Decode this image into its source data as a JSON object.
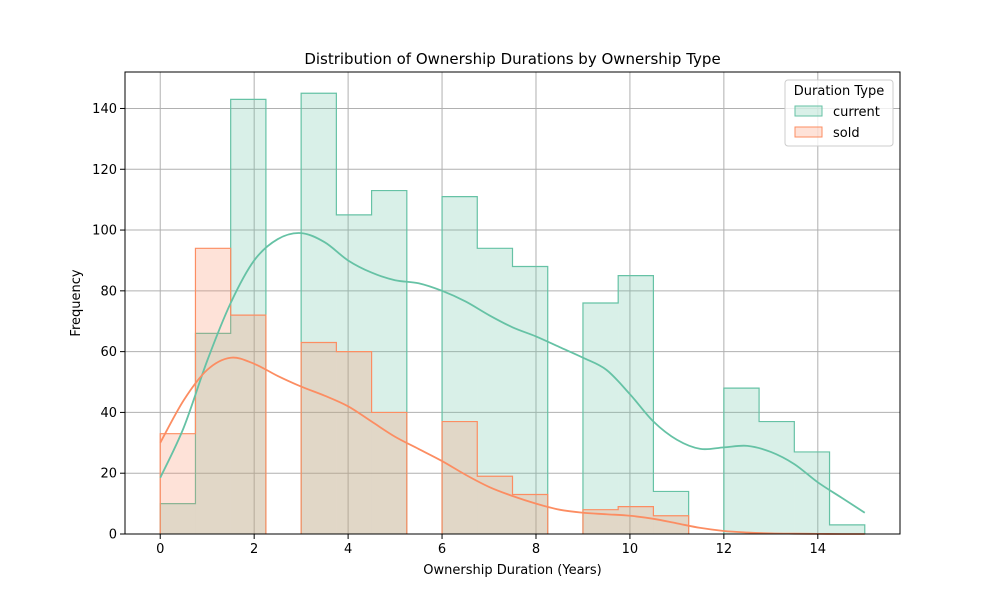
{
  "chart_data": {
    "type": "histogram",
    "title": "Distribution of Ownership Durations by Ownership Type",
    "xlabel": "Ownership Duration (Years)",
    "ylabel": "Frequency",
    "xlim": [
      -0.75,
      15.75
    ],
    "ylim": [
      0,
      152
    ],
    "xticks": [
      0,
      2,
      4,
      6,
      8,
      10,
      12,
      14
    ],
    "yticks": [
      0,
      20,
      40,
      60,
      80,
      100,
      120,
      140
    ],
    "grid": true,
    "bin_edges": [
      0,
      0.75,
      1.5,
      2.25,
      3,
      3.75,
      4.5,
      5.25,
      6,
      6.75,
      7.5,
      8.25,
      9,
      9.75,
      10.5,
      11.25,
      12,
      12.75,
      13.5,
      14.25,
      15
    ],
    "legend": {
      "title": "Duration Type",
      "position": "top-right"
    },
    "series": [
      {
        "name": "current",
        "line_color": "#66c2a5",
        "fill_color": "#66c2a5",
        "counts": [
          10,
          66,
          143,
          0,
          145,
          105,
          113,
          0,
          111,
          94,
          88,
          0,
          76,
          85,
          14,
          0,
          48,
          37,
          27,
          3
        ],
        "kde": {
          "x": [
            0,
            0.5,
            1,
            1.5,
            2,
            2.5,
            3,
            3.5,
            4,
            4.5,
            5,
            5.5,
            6,
            6.5,
            7,
            7.5,
            8,
            8.5,
            9,
            9.5,
            10,
            10.5,
            11,
            11.5,
            12,
            12.5,
            13,
            13.5,
            14,
            14.5,
            15
          ],
          "y": [
            18.5,
            35,
            57,
            76,
            90,
            97,
            99,
            96,
            90,
            86,
            83.5,
            82.5,
            80,
            76.5,
            72,
            68,
            65,
            61.5,
            58,
            54,
            46,
            37,
            31,
            28,
            28.5,
            29,
            27,
            23,
            17,
            12,
            7
          ]
        }
      },
      {
        "name": "sold",
        "line_color": "#fc8d62",
        "fill_color": "#fc8d62",
        "counts": [
          33,
          94,
          72,
          0,
          63,
          60,
          40,
          0,
          37,
          19,
          13,
          0,
          8,
          9,
          6,
          0,
          0,
          0,
          0,
          0
        ],
        "kde": {
          "x": [
            0,
            0.5,
            1,
            1.5,
            2,
            2.5,
            3,
            3.5,
            4,
            4.5,
            5,
            5.5,
            6,
            6.5,
            7,
            7.5,
            8,
            8.5,
            9,
            9.5,
            10,
            10.5,
            11,
            11.5,
            12,
            12.5,
            13,
            13.5,
            14,
            14.5,
            15
          ],
          "y": [
            30,
            44,
            54,
            58,
            56,
            52,
            48.5,
            45.5,
            42,
            37,
            32,
            28,
            24,
            19.5,
            15.5,
            12.5,
            10,
            8,
            7,
            6.5,
            6,
            5,
            3.5,
            2,
            1,
            0.5,
            0.2,
            0.1,
            0.05,
            0,
            0
          ]
        }
      }
    ]
  }
}
